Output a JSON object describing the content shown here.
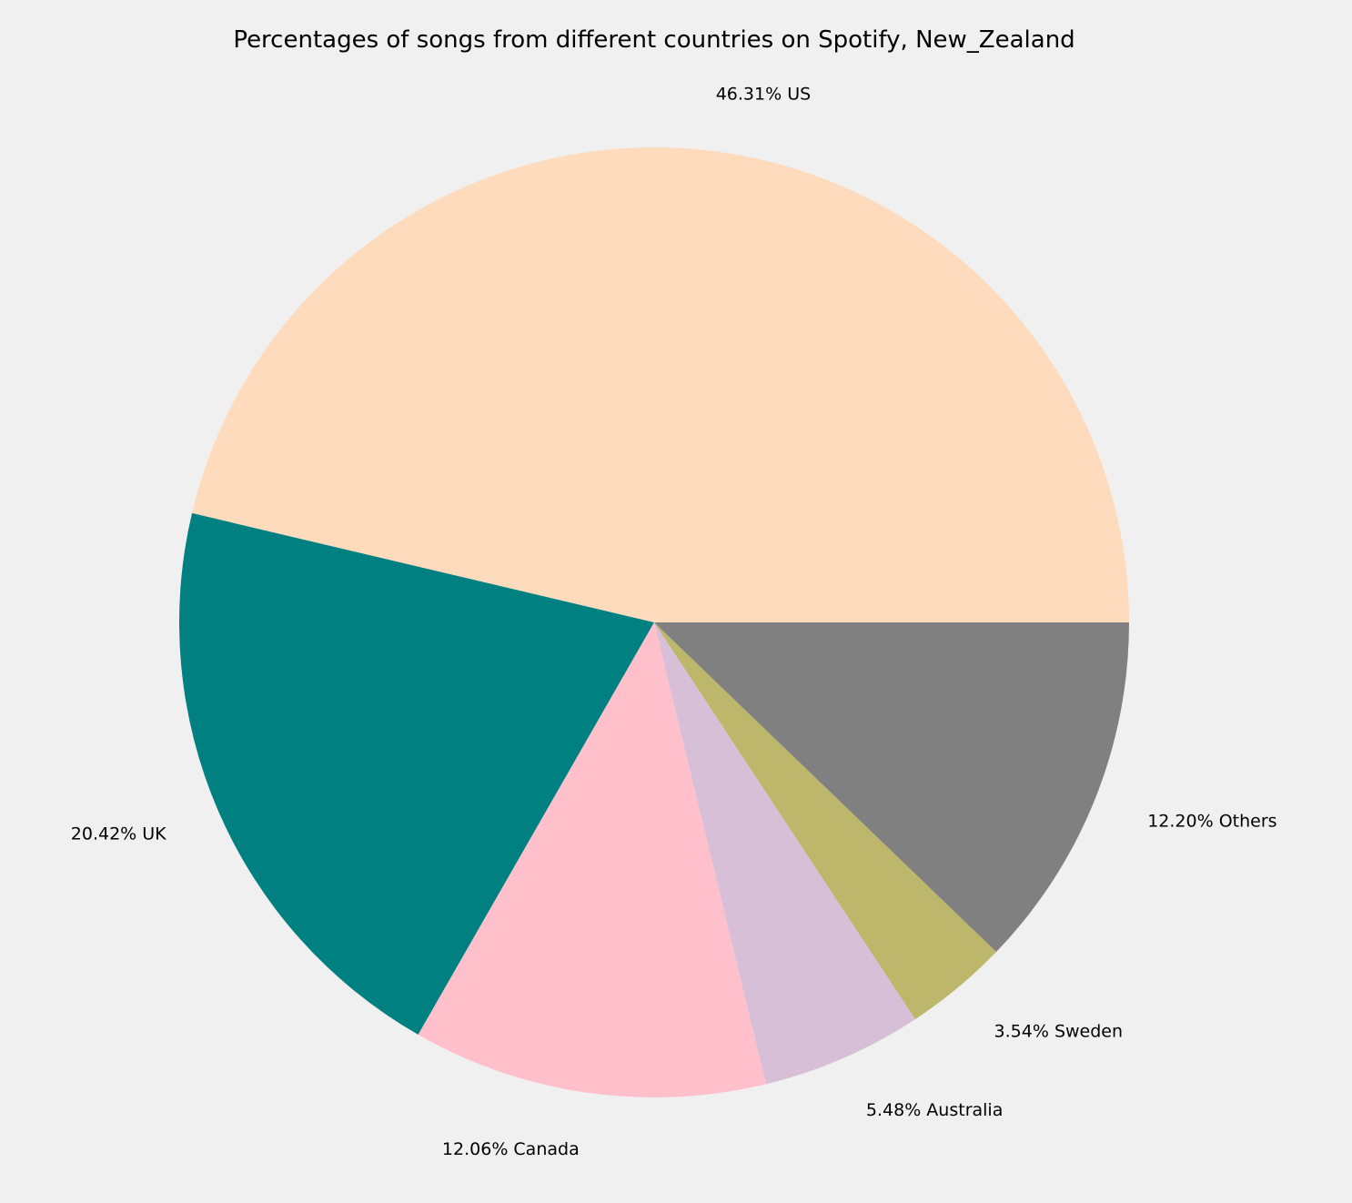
{
  "chart_data": {
    "type": "pie",
    "title": "Percentages of songs from different countries on Spotify, New_Zealand",
    "slices": [
      {
        "name": "US",
        "value": 46.31,
        "label": "46.31% US",
        "color": "#fddbbc"
      },
      {
        "name": "UK",
        "value": 20.42,
        "label": "20.42% UK",
        "color": "#008080"
      },
      {
        "name": "Canada",
        "value": 12.06,
        "label": "12.06% Canada",
        "color": "#ffc0cb"
      },
      {
        "name": "Australia",
        "value": 5.48,
        "label": "5.48% Australia",
        "color": "#d8bfd8"
      },
      {
        "name": "Sweden",
        "value": 3.54,
        "label": "3.54% Sweden",
        "color": "#bdb76b"
      },
      {
        "name": "Others",
        "value": 12.2,
        "label": "12.20% Others",
        "color": "#808080"
      }
    ],
    "start_angle": "0° (3 o'clock), counter-clockwise",
    "background": "#f0f0f0",
    "legend": "none"
  }
}
